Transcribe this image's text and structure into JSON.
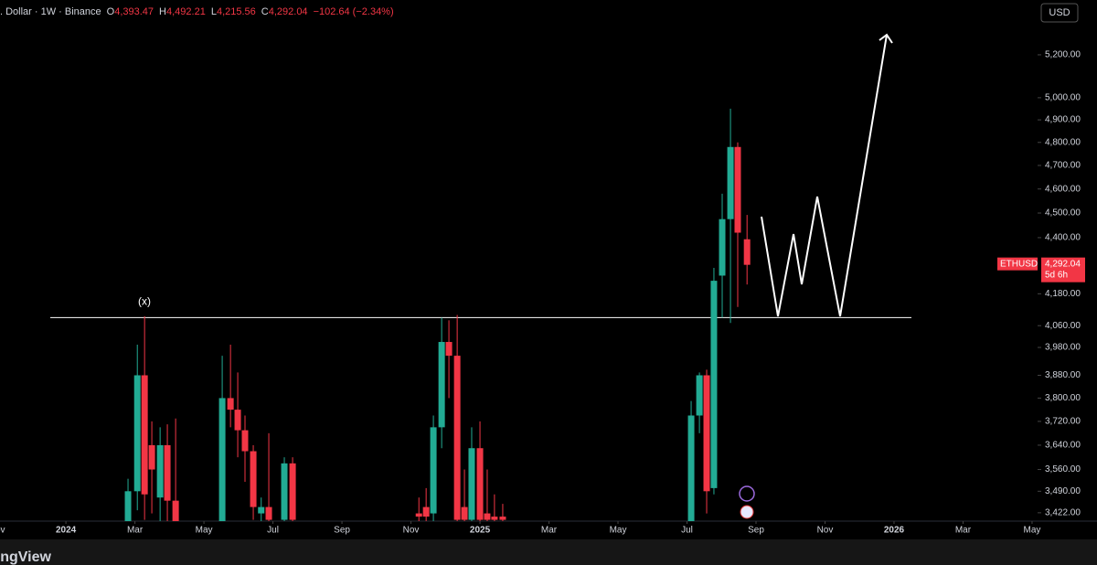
{
  "header": {
    "symbol": ". Dollar · 1W · Binance",
    "open_label": "O",
    "open": "4,393.47",
    "high_label": "H",
    "high": "4,492.21",
    "low_label": "L",
    "low": "4,215.56",
    "close_label": "C",
    "close": "4,292.04",
    "change": "−102.64 (−2.34%)",
    "currency": "USD"
  },
  "footer": {
    "brand": "TradingView"
  },
  "chart_data": {
    "type": "candlestick",
    "log_scale": true,
    "up_color": "#22ab94",
    "down_color": "#f23645",
    "annotation": "(x)",
    "hline": 4090,
    "last_price": {
      "value": 4292.04,
      "label": "4,292.04"
    },
    "symbol": "ETHUSD",
    "countdown": "5d 6h",
    "xlim": [
      -1.91,
      28.16
    ],
    "ylim": [
      3396,
      5467
    ],
    "xticks": [
      {
        "value": -2,
        "label": "Nov"
      },
      {
        "value": 0,
        "label": "2024"
      },
      {
        "value": 2,
        "label": "Mar"
      },
      {
        "value": 4,
        "label": "May"
      },
      {
        "value": 6,
        "label": "Jul"
      },
      {
        "value": 8,
        "label": "Sep"
      },
      {
        "value": 10,
        "label": "Nov"
      },
      {
        "value": 12,
        "label": "2025"
      },
      {
        "value": 14,
        "label": "Mar"
      },
      {
        "value": 16,
        "label": "May"
      },
      {
        "value": 18,
        "label": "Jul"
      },
      {
        "value": 20,
        "label": "Sep"
      },
      {
        "value": 22,
        "label": "Nov"
      },
      {
        "value": 24,
        "label": "2026"
      },
      {
        "value": 26,
        "label": "Mar"
      },
      {
        "value": 28,
        "label": "May"
      }
    ],
    "yticks": [
      {
        "value": 5200,
        "label": "5,200.00"
      },
      {
        "value": 5000,
        "label": "5,000.00"
      },
      {
        "value": 4900,
        "label": "4,900.00"
      },
      {
        "value": 4800,
        "label": "4,800.00"
      },
      {
        "value": 4700,
        "label": "4,700.00"
      },
      {
        "value": 4600,
        "label": "4,600.00"
      },
      {
        "value": 4500,
        "label": "4,500.00"
      },
      {
        "value": 4400,
        "label": "4,400.00"
      },
      {
        "value": 4180,
        "label": "4,180.00"
      },
      {
        "value": 4060,
        "label": "4,060.00"
      },
      {
        "value": 3980,
        "label": "3,980.00"
      },
      {
        "value": 3880,
        "label": "3,880.00"
      },
      {
        "value": 3800,
        "label": "3,800.00"
      },
      {
        "value": 3720,
        "label": "3,720.00"
      },
      {
        "value": 3640,
        "label": "3,640.00"
      },
      {
        "value": 3560,
        "label": "3,560.00"
      },
      {
        "value": 3490,
        "label": "3,490.00"
      },
      {
        "value": 3422,
        "label": "3,422.00"
      }
    ],
    "candles": [
      {
        "x": 1.8,
        "open": 3380,
        "high": 3530,
        "low": 3350,
        "close": 3490
      },
      {
        "x": 2.07,
        "open": 3490,
        "high": 3990,
        "low": 3430,
        "close": 3880
      },
      {
        "x": 2.28,
        "open": 3880,
        "high": 4095,
        "low": 3400,
        "close": 3480
      },
      {
        "x": 2.49,
        "open": 3640,
        "high": 3720,
        "low": 3420,
        "close": 3560
      },
      {
        "x": 2.73,
        "open": 3470,
        "high": 3700,
        "low": 3380,
        "close": 3640
      },
      {
        "x": 2.94,
        "open": 3640,
        "high": 3710,
        "low": 3380,
        "close": 3460
      },
      {
        "x": 3.18,
        "open": 3460,
        "high": 3730,
        "low": 3350,
        "close": 3380
      },
      {
        "x": 4.53,
        "open": 3380,
        "high": 3950,
        "low": 3350,
        "close": 3800
      },
      {
        "x": 4.77,
        "open": 3800,
        "high": 3990,
        "low": 3700,
        "close": 3760
      },
      {
        "x": 4.98,
        "open": 3760,
        "high": 3890,
        "low": 3600,
        "close": 3690
      },
      {
        "x": 5.19,
        "open": 3690,
        "high": 3740,
        "low": 3520,
        "close": 3620
      },
      {
        "x": 5.43,
        "open": 3620,
        "high": 3640,
        "low": 3400,
        "close": 3440
      },
      {
        "x": 5.66,
        "open": 3420,
        "high": 3470,
        "low": 3390,
        "close": 3440
      },
      {
        "x": 5.88,
        "open": 3440,
        "high": 3680,
        "low": 3380,
        "close": 3400
      },
      {
        "x": 6.33,
        "open": 3400,
        "high": 3600,
        "low": 3390,
        "close": 3580
      },
      {
        "x": 6.57,
        "open": 3580,
        "high": 3600,
        "low": 3390,
        "close": 3400
      },
      {
        "x": 10.23,
        "open": 3420,
        "high": 3470,
        "low": 3380,
        "close": 3410
      },
      {
        "x": 10.44,
        "open": 3440,
        "high": 3500,
        "low": 3390,
        "close": 3410
      },
      {
        "x": 10.65,
        "open": 3420,
        "high": 3740,
        "low": 3380,
        "close": 3700
      },
      {
        "x": 10.89,
        "open": 3700,
        "high": 4090,
        "low": 3630,
        "close": 4000
      },
      {
        "x": 11.1,
        "open": 4000,
        "high": 4080,
        "low": 3800,
        "close": 3950
      },
      {
        "x": 11.34,
        "open": 3950,
        "high": 4100,
        "low": 3380,
        "close": 3400
      },
      {
        "x": 11.55,
        "open": 3440,
        "high": 3560,
        "low": 3380,
        "close": 3400
      },
      {
        "x": 11.76,
        "open": 3400,
        "high": 3700,
        "low": 3390,
        "close": 3630
      },
      {
        "x": 12.0,
        "open": 3630,
        "high": 3720,
        "low": 3380,
        "close": 3400
      },
      {
        "x": 12.21,
        "open": 3420,
        "high": 3560,
        "low": 3380,
        "close": 3400
      },
      {
        "x": 12.42,
        "open": 3410,
        "high": 3480,
        "low": 3380,
        "close": 3400
      },
      {
        "x": 12.66,
        "open": 3410,
        "high": 3450,
        "low": 3390,
        "close": 3400
      },
      {
        "x": 18.12,
        "open": 3390,
        "high": 3790,
        "low": 3380,
        "close": 3740
      },
      {
        "x": 18.36,
        "open": 3740,
        "high": 3890,
        "low": 3680,
        "close": 3880
      },
      {
        "x": 18.57,
        "open": 3880,
        "high": 3900,
        "low": 3420,
        "close": 3490
      },
      {
        "x": 18.78,
        "open": 3500,
        "high": 4280,
        "low": 3480,
        "close": 4230
      },
      {
        "x": 19.02,
        "open": 4250,
        "high": 4580,
        "low": 4090,
        "close": 4475
      },
      {
        "x": 19.26,
        "open": 4475,
        "high": 4950,
        "low": 4070,
        "close": 4780
      },
      {
        "x": 19.47,
        "open": 4780,
        "high": 4800,
        "low": 4130,
        "close": 4420
      },
      {
        "x": 19.74,
        "open": 4393.47,
        "high": 4492.21,
        "low": 4215.56,
        "close": 4292.04
      }
    ]
  }
}
